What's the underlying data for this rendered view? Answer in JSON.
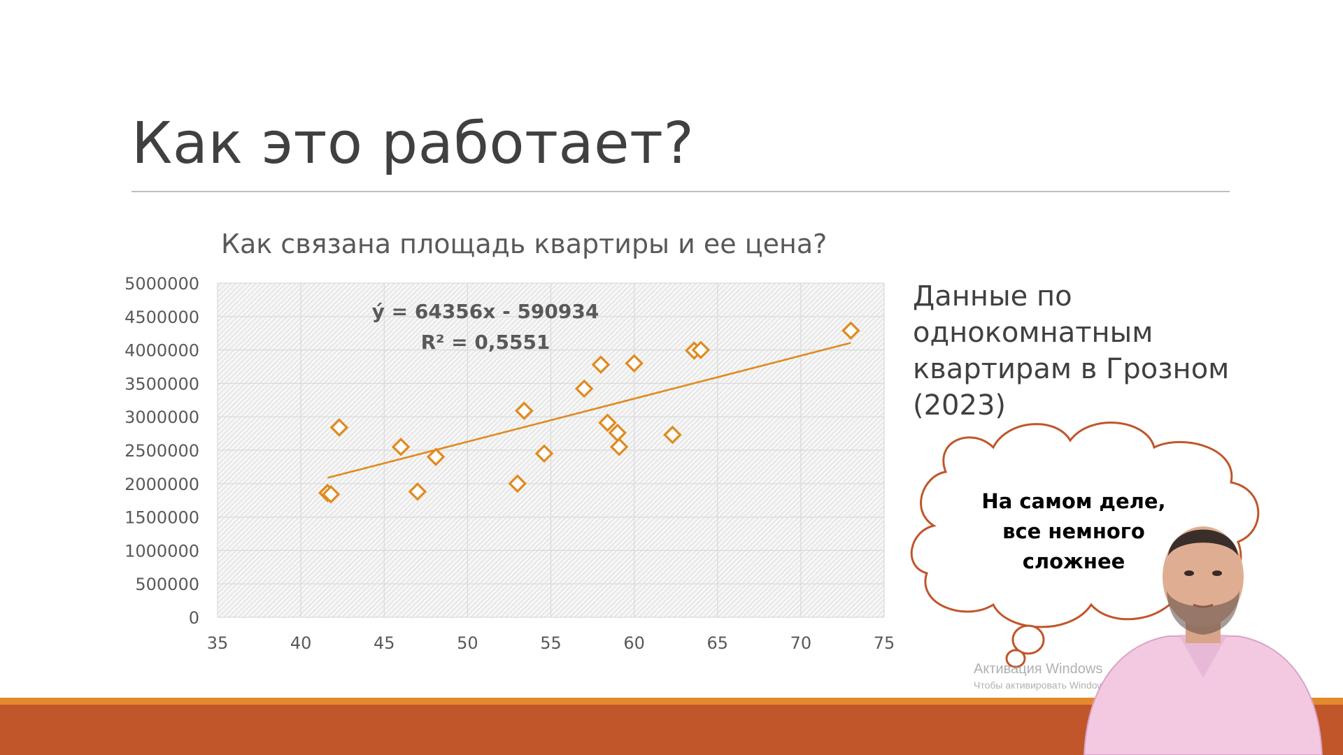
{
  "slide": {
    "title": "Как это работает?",
    "side_text": "Данные по однокомнатным квартирам в Грозном (2023)",
    "bubble_text": "На самом деле, все немного сложнее"
  },
  "watermark": {
    "line1": "Активация Windows",
    "line2": "Чтобы активировать Windows, перейдите в раздел \"Параметры\"."
  },
  "colors": {
    "accent": "#e48a2e",
    "band": "#c0562a",
    "marker": "#e08a1e",
    "trendline": "#e08a1e"
  },
  "chart_data": {
    "type": "scatter",
    "title": "Как связана площадь квартиры и ее цена?",
    "xlabel": "",
    "ylabel": "",
    "xlim": [
      35,
      75
    ],
    "ylim": [
      0,
      5000000
    ],
    "x_ticks": [
      35,
      40,
      45,
      50,
      55,
      60,
      65,
      70,
      75
    ],
    "y_ticks": [
      0,
      500000,
      1000000,
      1500000,
      2000000,
      2500000,
      3000000,
      3500000,
      4000000,
      4500000,
      5000000
    ],
    "grid": true,
    "legend": "none",
    "points": [
      {
        "x": 41.6,
        "y": 1860000
      },
      {
        "x": 41.8,
        "y": 1840000
      },
      {
        "x": 42.3,
        "y": 2840000
      },
      {
        "x": 46.0,
        "y": 2550000
      },
      {
        "x": 47.0,
        "y": 1880000
      },
      {
        "x": 48.1,
        "y": 2400000
      },
      {
        "x": 53.0,
        "y": 2000000
      },
      {
        "x": 53.4,
        "y": 3090000
      },
      {
        "x": 54.6,
        "y": 2450000
      },
      {
        "x": 57.0,
        "y": 3420000
      },
      {
        "x": 58.0,
        "y": 3780000
      },
      {
        "x": 58.4,
        "y": 2910000
      },
      {
        "x": 59.0,
        "y": 2760000
      },
      {
        "x": 59.1,
        "y": 2550000
      },
      {
        "x": 60.0,
        "y": 3800000
      },
      {
        "x": 62.3,
        "y": 2730000
      },
      {
        "x": 63.6,
        "y": 3990000
      },
      {
        "x": 64.0,
        "y": 4000000
      },
      {
        "x": 73.0,
        "y": 4290000
      }
    ],
    "trendline": {
      "slope": 64356,
      "intercept": -590934,
      "x_range": [
        41.6,
        73.0
      ],
      "equation_label": "ý = 64356x - 590934",
      "r2_label": "R² = 0,5551"
    }
  }
}
